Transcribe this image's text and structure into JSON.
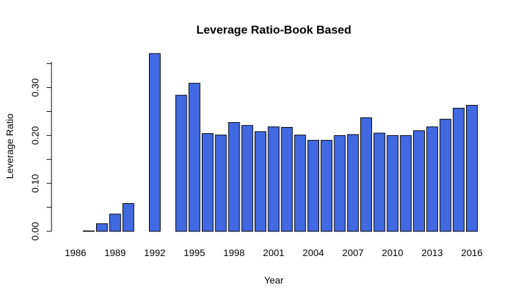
{
  "chart_data": {
    "type": "bar",
    "title": "Leverage Ratio-Book Based",
    "xlabel": "Year",
    "ylabel": "Leverage Ratio",
    "categories": [
      "1986",
      "1987",
      "1988",
      "1989",
      "1990",
      "1991",
      "1992",
      "1993",
      "1994",
      "1995",
      "1996",
      "1997",
      "1998",
      "1999",
      "2000",
      "2001",
      "2002",
      "2003",
      "2004",
      "2005",
      "2006",
      "2007",
      "2008",
      "2009",
      "2010",
      "2011",
      "2012",
      "2013",
      "2014",
      "2015",
      "2016"
    ],
    "x_tick_labels": [
      "1986",
      "1989",
      "1992",
      "1995",
      "1998",
      "2001",
      "2004",
      "2007",
      "2010",
      "2013",
      "2016"
    ],
    "values": [
      null,
      0.001,
      0.016,
      0.036,
      0.058,
      null,
      0.371,
      null,
      0.284,
      0.309,
      0.204,
      0.201,
      0.227,
      0.221,
      0.208,
      0.218,
      0.217,
      0.201,
      0.19,
      0.19,
      0.2,
      0.202,
      0.237,
      0.205,
      0.2,
      0.2,
      0.21,
      0.218,
      0.234,
      0.257,
      0.263
    ],
    "y_ticks": [
      0.0,
      0.1,
      0.2,
      0.3
    ],
    "y_tick_labels": [
      "0.00",
      "0.10",
      "0.20",
      "0.30"
    ],
    "ylim": [
      0,
      0.371
    ],
    "bar_color": "#4169e1",
    "grid": false,
    "legend": "none"
  }
}
